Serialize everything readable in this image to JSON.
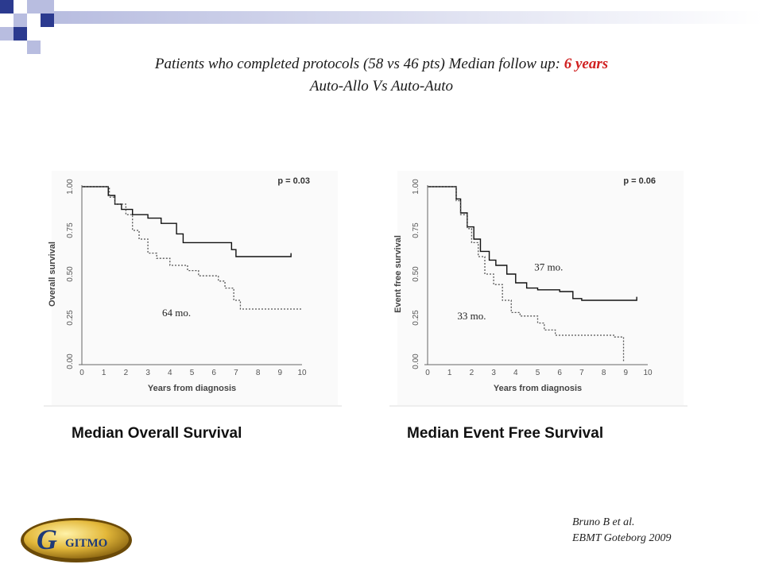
{
  "header": {
    "line1_text": "Patients who completed protocols (58 vs 46 pts) Median follow up: ",
    "line1_highlight": "6 years",
    "line2": "Auto-Allo Vs Auto-Auto",
    "highlight_color": "#d02020"
  },
  "decor": {
    "square_color_dark": "#2b3a8f",
    "square_color_light": "#b8bde0"
  },
  "captions": {
    "left": "Median Overall Survival",
    "right": "Median Event Free Survival"
  },
  "citation": {
    "line1": "Bruno B et al.",
    "line2": "EBMT Goteborg 2009"
  },
  "logo": {
    "text": "GITMO"
  },
  "chart_data": [
    {
      "type": "line",
      "title": "",
      "xlabel": "Years from diagnosis",
      "ylabel": "Overall survival",
      "x_ticks": [
        0,
        1,
        2,
        3,
        4,
        5,
        6,
        7,
        8,
        9,
        10
      ],
      "y_ticks": [
        "0.00",
        "0.25",
        "0.50",
        "0.75",
        "1.00"
      ],
      "xlim": [
        0,
        10
      ],
      "ylim": [
        0,
        1
      ],
      "p_value": "p = 0.03",
      "annotations": [
        {
          "text": "64 mo.",
          "x": 4.3,
          "y": 0.26
        }
      ],
      "series": [
        {
          "style": "solid",
          "points": [
            [
              0,
              1.0
            ],
            [
              1.1,
              1.0
            ],
            [
              1.2,
              0.95
            ],
            [
              1.5,
              0.9
            ],
            [
              1.8,
              0.87
            ],
            [
              2.3,
              0.84
            ],
            [
              3.0,
              0.82
            ],
            [
              3.6,
              0.79
            ],
            [
              4.3,
              0.73
            ],
            [
              4.6,
              0.68
            ],
            [
              6.7,
              0.68
            ],
            [
              6.8,
              0.64
            ],
            [
              7.0,
              0.6
            ],
            [
              9.5,
              0.6
            ],
            [
              9.5,
              0.62
            ]
          ]
        },
        {
          "style": "dotted",
          "points": [
            [
              0,
              1.0
            ],
            [
              1.1,
              1.0
            ],
            [
              1.25,
              0.94
            ],
            [
              1.5,
              0.9
            ],
            [
              2.0,
              0.84
            ],
            [
              2.3,
              0.75
            ],
            [
              2.6,
              0.7
            ],
            [
              3.0,
              0.62
            ],
            [
              3.4,
              0.59
            ],
            [
              4.0,
              0.55
            ],
            [
              4.8,
              0.52
            ],
            [
              5.3,
              0.49
            ],
            [
              6.2,
              0.46
            ],
            [
              6.5,
              0.42
            ],
            [
              6.9,
              0.35
            ],
            [
              7.2,
              0.3
            ],
            [
              10,
              0.3
            ]
          ]
        }
      ]
    },
    {
      "type": "line",
      "title": "",
      "xlabel": "Years from diagnosis",
      "ylabel": "Event free survival",
      "x_ticks": [
        0,
        1,
        2,
        3,
        4,
        5,
        6,
        7,
        8,
        9,
        10
      ],
      "y_ticks": [
        "0.00",
        "0.25",
        "0.50",
        "0.75",
        "1.00"
      ],
      "xlim": [
        0,
        10
      ],
      "ylim": [
        0,
        1
      ],
      "p_value": "p = 0.06",
      "annotations": [
        {
          "text": "37 mo.",
          "x": 5.5,
          "y": 0.52
        },
        {
          "text": "33 mo.",
          "x": 2.0,
          "y": 0.24
        }
      ],
      "series": [
        {
          "style": "solid",
          "points": [
            [
              0,
              1.0
            ],
            [
              1.1,
              1.0
            ],
            [
              1.3,
              0.93
            ],
            [
              1.5,
              0.85
            ],
            [
              1.8,
              0.77
            ],
            [
              2.1,
              0.7
            ],
            [
              2.4,
              0.63
            ],
            [
              2.8,
              0.58
            ],
            [
              3.1,
              0.55
            ],
            [
              3.6,
              0.5
            ],
            [
              4.0,
              0.45
            ],
            [
              4.5,
              0.42
            ],
            [
              5.0,
              0.41
            ],
            [
              6.0,
              0.4
            ],
            [
              6.6,
              0.36
            ],
            [
              7.0,
              0.35
            ],
            [
              9.5,
              0.35
            ],
            [
              9.5,
              0.37
            ]
          ]
        },
        {
          "style": "dotted",
          "points": [
            [
              0,
              1.0
            ],
            [
              1.1,
              1.0
            ],
            [
              1.3,
              0.92
            ],
            [
              1.5,
              0.84
            ],
            [
              1.8,
              0.76
            ],
            [
              2.0,
              0.68
            ],
            [
              2.3,
              0.6
            ],
            [
              2.6,
              0.5
            ],
            [
              3.0,
              0.44
            ],
            [
              3.4,
              0.35
            ],
            [
              3.8,
              0.28
            ],
            [
              4.2,
              0.26
            ],
            [
              5.0,
              0.22
            ],
            [
              5.3,
              0.18
            ],
            [
              5.8,
              0.15
            ],
            [
              7.0,
              0.15
            ],
            [
              8.5,
              0.14
            ],
            [
              8.9,
              0.14
            ],
            [
              8.9,
              0.0
            ]
          ]
        }
      ]
    }
  ]
}
